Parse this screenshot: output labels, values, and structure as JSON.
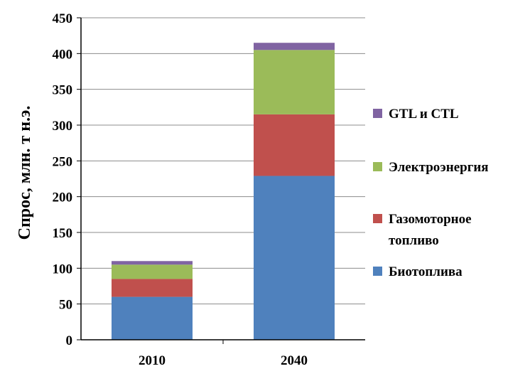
{
  "chart_data": {
    "type": "bar",
    "stacked": true,
    "categories": [
      "2010",
      "2040"
    ],
    "series": [
      {
        "name": "Биотоплива",
        "values": [
          60,
          229
        ],
        "color": "#4F81BD"
      },
      {
        "name": "Газомоторное топливо",
        "values": [
          25,
          86
        ],
        "color": "#C0504D"
      },
      {
        "name": "Электроэнергия",
        "values": [
          20,
          90
        ],
        "color": "#9BBB59"
      },
      {
        "name": "GTL и CTL",
        "values": [
          5,
          10
        ],
        "color": "#8064A2"
      }
    ],
    "legend_order": [
      3,
      2,
      1,
      0
    ],
    "legend_lines": {
      "0": [
        "Биотоплива"
      ],
      "1": [
        "Газомоторное",
        "топливо"
      ],
      "2": [
        "Электроэнергия"
      ],
      "3": [
        "GTL и CTL"
      ]
    },
    "ylabel": "Спрос, млн. т н.э.",
    "xlabel": "",
    "ylim": [
      0,
      450
    ],
    "yticks": [
      0,
      50,
      100,
      150,
      200,
      250,
      300,
      350,
      400,
      450
    ],
    "grid": true,
    "legend_position": "right"
  }
}
